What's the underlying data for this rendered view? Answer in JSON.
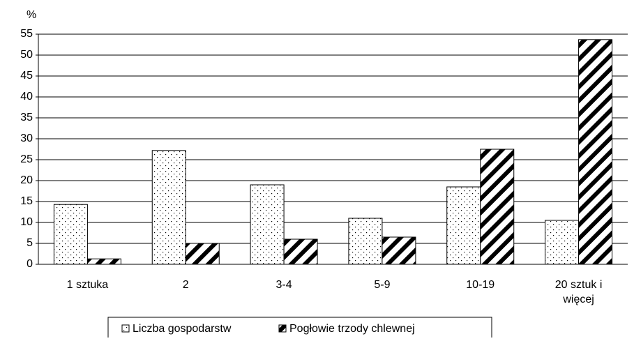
{
  "chart_data": {
    "type": "bar",
    "y_axis_label": "%",
    "categories": [
      "1 sztuka",
      "2",
      "3-4",
      "5-9",
      "10-19",
      "20 sztuk i więcej"
    ],
    "series": [
      {
        "name": "Liczba gospodarstw",
        "pattern": "dots",
        "color": "#000000",
        "values": [
          14.3,
          27.2,
          19,
          11,
          18.5,
          10.5
        ]
      },
      {
        "name": "Pogłowie trzody chlewnej",
        "pattern": "diagonal",
        "color": "#000000",
        "values": [
          1.3,
          5,
          6,
          6.5,
          27.5,
          53.7
        ]
      }
    ],
    "ylim": [
      0,
      55
    ],
    "yticks": [
      0,
      5,
      10,
      15,
      20,
      25,
      30,
      35,
      40,
      45,
      50,
      55
    ],
    "grid": true
  }
}
